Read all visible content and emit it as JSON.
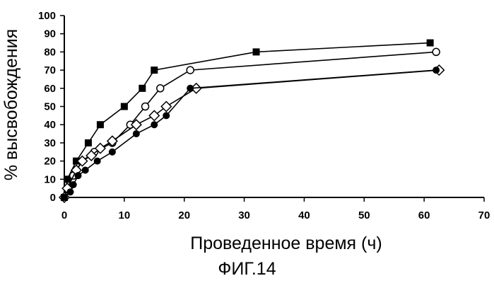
{
  "caption": "ФИГ.14",
  "chart_data": {
    "type": "line",
    "title": "",
    "xlabel": "Проведенное время (ч)",
    "ylabel": "% высвобождения",
    "xlim": [
      0,
      70
    ],
    "ylim": [
      0,
      100
    ],
    "xticks": [
      0,
      10,
      20,
      30,
      40,
      50,
      60,
      70
    ],
    "yticks": [
      0,
      10,
      20,
      30,
      40,
      50,
      60,
      70,
      80,
      90,
      100
    ],
    "grid": false,
    "legend": "none",
    "series": [
      {
        "marker": "filled-square",
        "points": [
          [
            0,
            0
          ],
          [
            0.5,
            10
          ],
          [
            2,
            20
          ],
          [
            4,
            30
          ],
          [
            6,
            40
          ],
          [
            10,
            50
          ],
          [
            13,
            60
          ],
          [
            15,
            70
          ],
          [
            32,
            80
          ],
          [
            61,
            85
          ]
        ]
      },
      {
        "marker": "open-circle",
        "points": [
          [
            0,
            0
          ],
          [
            0.5,
            5
          ],
          [
            1.5,
            12
          ],
          [
            3,
            20
          ],
          [
            5,
            25
          ],
          [
            8,
            30
          ],
          [
            11,
            40
          ],
          [
            13.5,
            50
          ],
          [
            16,
            60
          ],
          [
            21,
            70
          ],
          [
            62,
            80
          ]
        ]
      },
      {
        "marker": "open-diamond",
        "points": [
          [
            0,
            0
          ],
          [
            0.5,
            5
          ],
          [
            2,
            15
          ],
          [
            3,
            20
          ],
          [
            4.5,
            23
          ],
          [
            6,
            27
          ],
          [
            8,
            31
          ],
          [
            12,
            40
          ],
          [
            15,
            45
          ],
          [
            17,
            50
          ],
          [
            22,
            60
          ],
          [
            62.5,
            70
          ]
        ]
      },
      {
        "marker": "filled-circle",
        "points": [
          [
            0,
            0
          ],
          [
            1,
            3
          ],
          [
            1.5,
            7
          ],
          [
            2.3,
            12
          ],
          [
            3.5,
            15
          ],
          [
            5.5,
            20
          ],
          [
            8,
            25
          ],
          [
            12,
            35
          ],
          [
            15,
            40
          ],
          [
            17,
            45
          ],
          [
            21,
            60
          ],
          [
            62,
            70
          ]
        ]
      }
    ]
  }
}
